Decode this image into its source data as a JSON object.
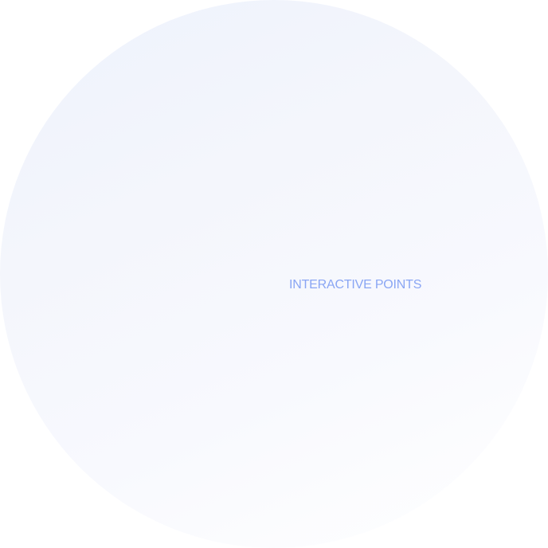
{
  "hotspot": {
    "label": "INTERACTIVE POINTS"
  },
  "colors": {
    "label_text": "#8aa6f4",
    "circle_top": "#eef2fd",
    "circle_bottom": "#ffffff"
  }
}
